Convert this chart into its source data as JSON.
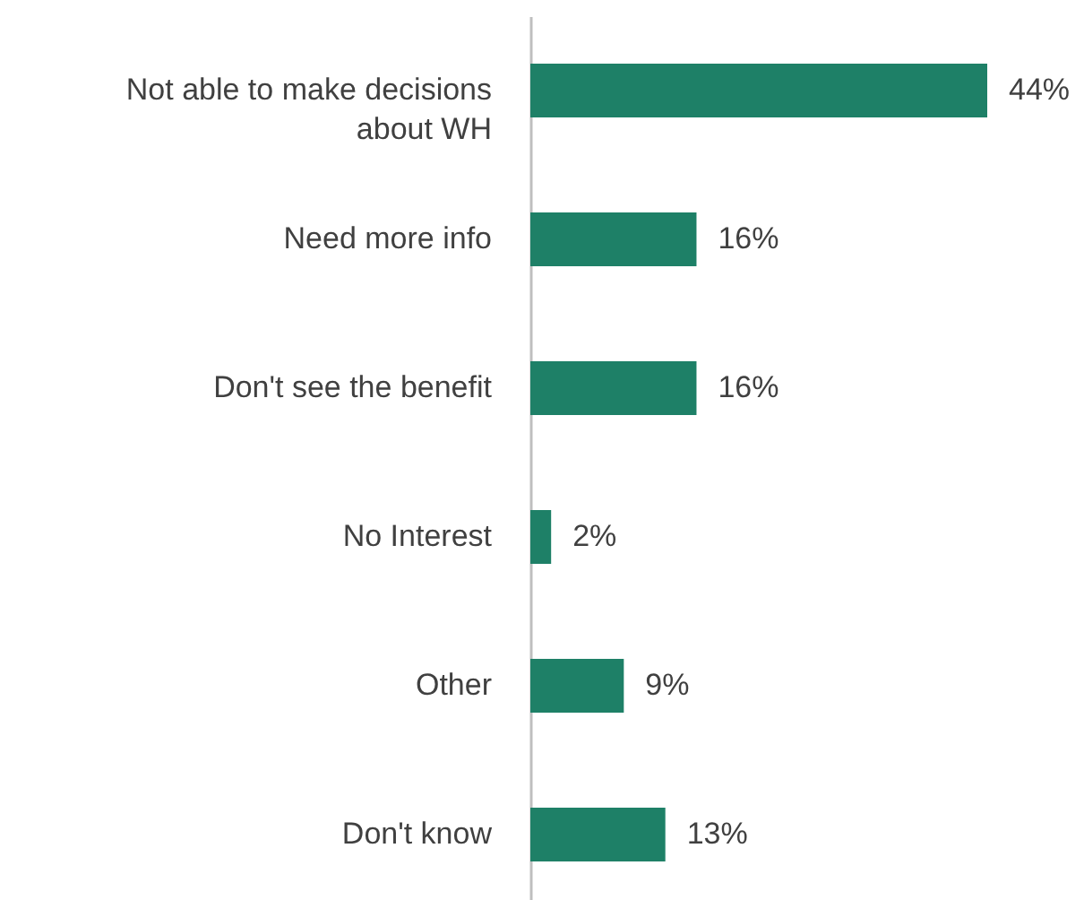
{
  "chart_data": {
    "type": "bar",
    "orientation": "horizontal",
    "categories": [
      "Not able to make decisions about WH",
      "Need more info",
      "Don't see the benefit",
      "No Interest",
      "Other",
      "Don't know"
    ],
    "series": [
      {
        "color": "#1e8067",
        "values": [
          44,
          16,
          16,
          2,
          9,
          13
        ],
        "value_labels": [
          "44%",
          "16%",
          "16%",
          "2%",
          "9%",
          "13%"
        ]
      }
    ]
  }
}
